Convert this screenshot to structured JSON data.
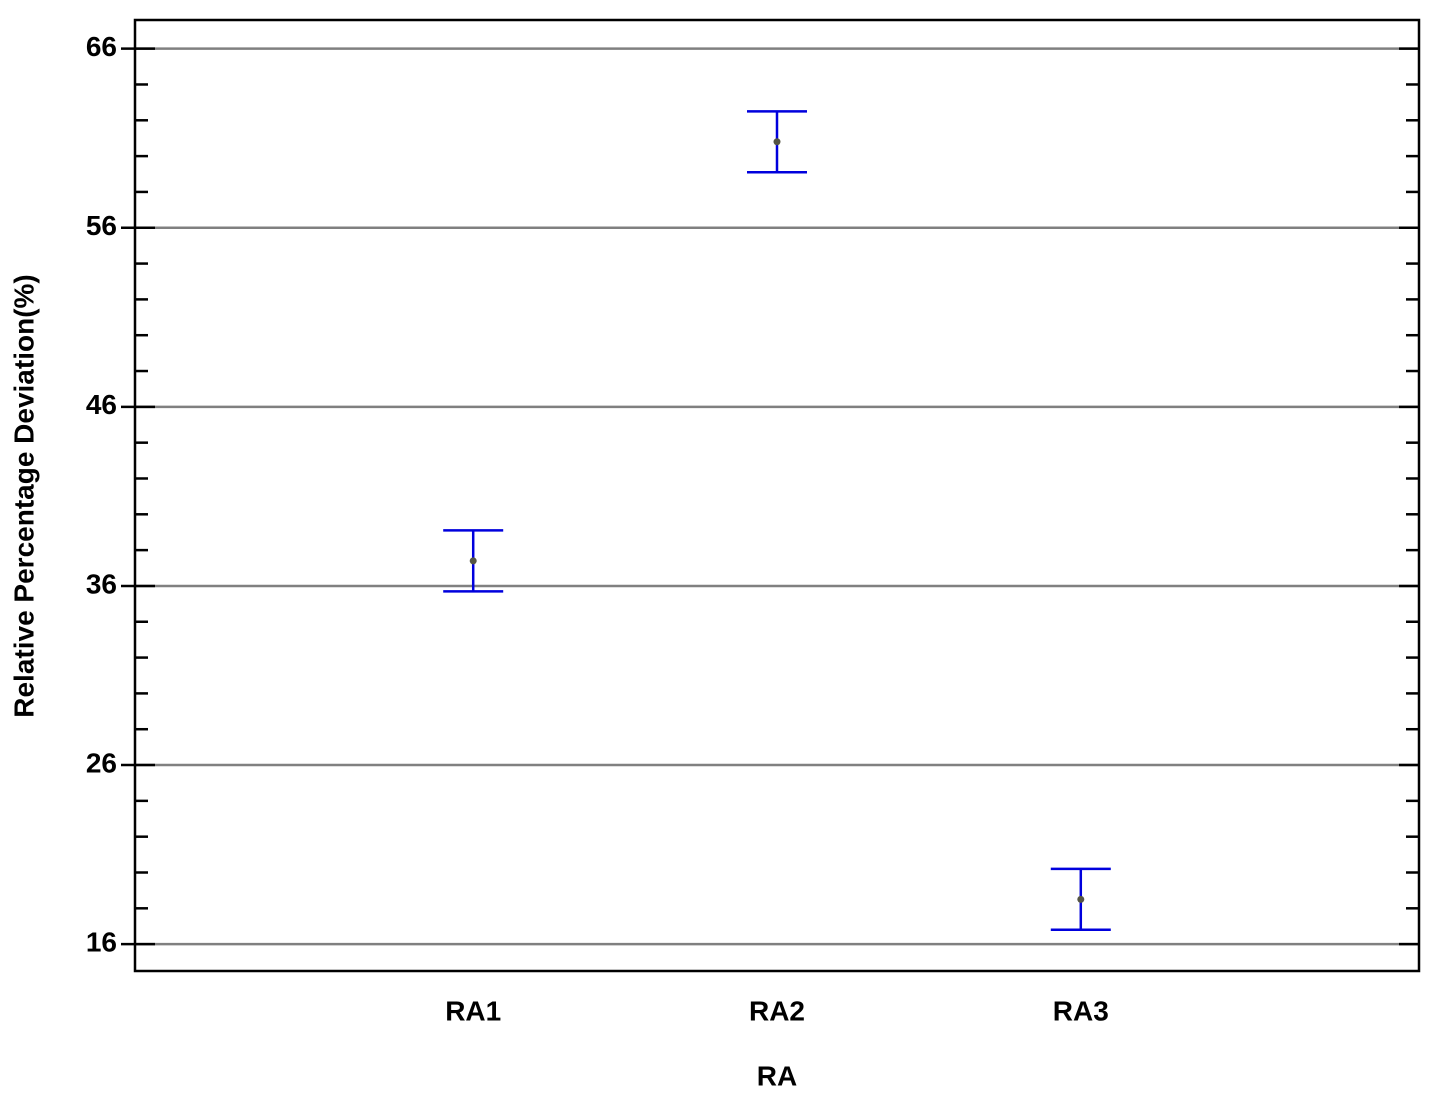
{
  "chart_data": {
    "type": "errorbar",
    "x_label": "RA",
    "y_label": "Relative Percentage Deviation(%)",
    "categories": [
      "RA1",
      "RA2",
      "RA3"
    ],
    "values": [
      37.4,
      60.8,
      18.5
    ],
    "errors": [
      1.7,
      1.7,
      1.7
    ],
    "color": "#0000dd",
    "point_color": "#555544",
    "ylim": [
      14.5,
      67.6
    ],
    "yticks": [
      16,
      26,
      36,
      46,
      56,
      66
    ],
    "yminorticks": [
      18,
      20,
      22,
      24,
      28,
      30,
      32,
      34,
      38,
      40,
      42,
      44,
      48,
      50,
      52,
      54,
      58,
      60,
      62,
      64
    ],
    "grid": true
  }
}
